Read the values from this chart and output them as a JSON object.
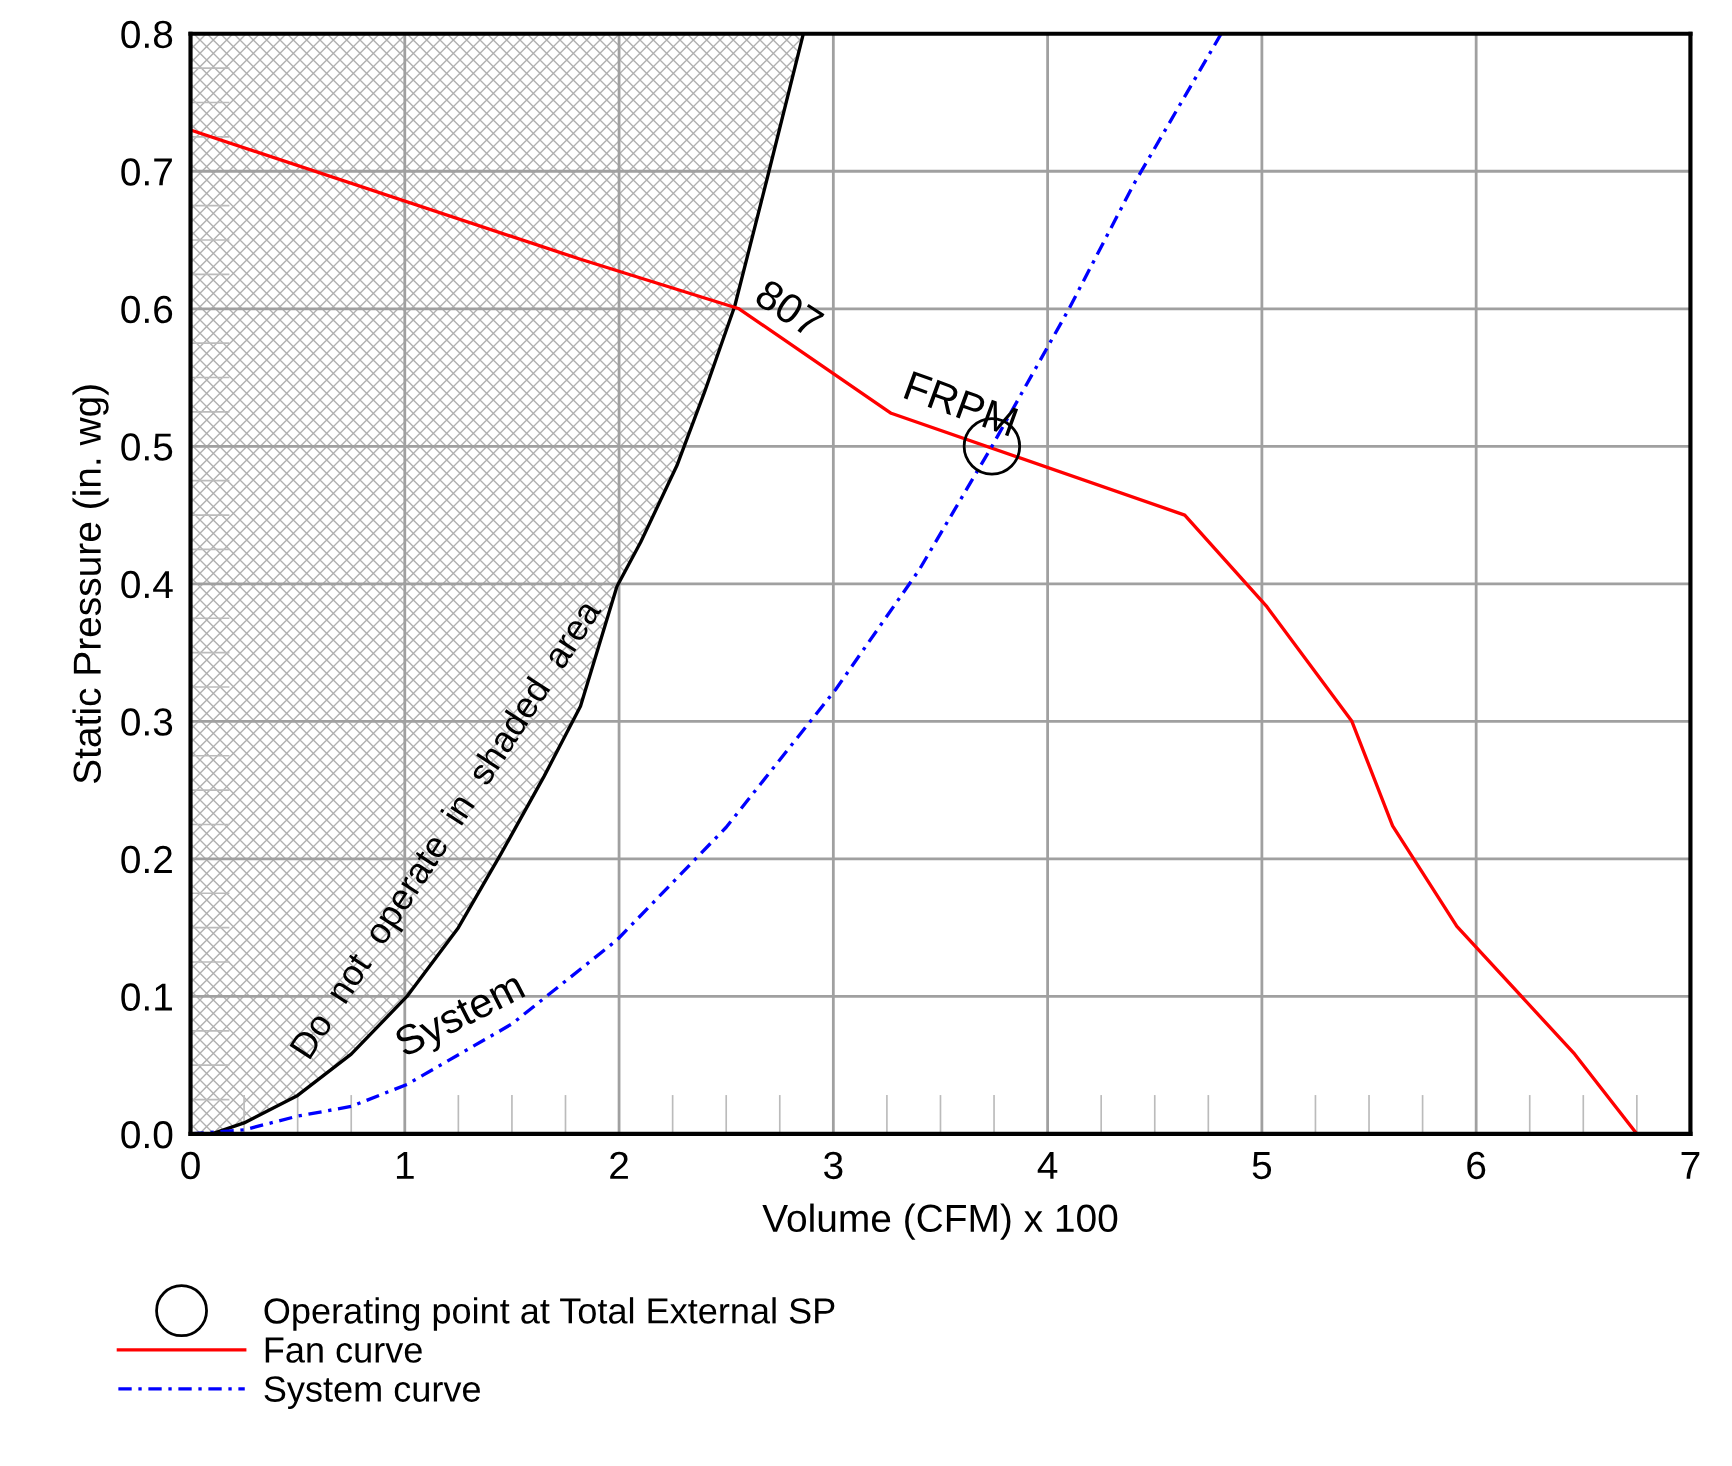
{
  "chart_data": {
    "type": "line",
    "xlabel": "Volume (CFM) x 100",
    "ylabel": "Static Pressure (in. wg)",
    "series": [
      {
        "type": "line",
        "color": "#000000",
        "x": [
          0.1,
          0.25,
          0.5,
          0.75,
          1.01,
          1.25,
          1.45,
          1.65,
          1.82,
          1.99,
          2.1,
          2.27,
          2.4,
          2.54,
          2.69,
          2.86
        ],
        "values": [
          0.0,
          0.008,
          0.028,
          0.058,
          0.1,
          0.15,
          0.204,
          0.26,
          0.311,
          0.398,
          0.43,
          0.486,
          0.54,
          0.602,
          0.694,
          0.8
        ]
      },
      {
        "type": "scatter",
        "name": "Operating point at Total External SP",
        "color": "#000000",
        "marker": "circle",
        "x": [
          3.74
        ],
        "values": [
          0.5
        ]
      },
      {
        "name": "Fan curve",
        "color": "#ff0000",
        "line_style": "solid",
        "x": [
          0,
          1.82,
          2.56,
          3.27,
          4.64,
          5.02,
          5.42,
          5.61,
          5.91,
          6.46,
          6.75
        ],
        "values": [
          0.73,
          0.636,
          0.6,
          0.524,
          0.45,
          0.384,
          0.3,
          0.224,
          0.151,
          0.058,
          0.0
        ]
      },
      {
        "name": "System curve",
        "color": "#0000ff",
        "line_style": "dashdot",
        "x": [
          0,
          0.25,
          0.5,
          0.75,
          1.01,
          1.5,
          1.99,
          2.5,
          3.01,
          3.4,
          3.74,
          4.1,
          4.4,
          4.81
        ],
        "values": [
          0.0,
          0.003,
          0.013,
          0.02,
          0.036,
          0.08,
          0.141,
          0.223,
          0.323,
          0.41,
          0.5,
          0.6,
          0.69,
          0.8
        ]
      }
    ],
    "annotations": [
      {
        "text": "807",
        "x": 2.6,
        "y": 0.6
      },
      {
        "text": "FRPM",
        "x": 3.3,
        "y": 0.53
      },
      "System",
      "Do  not  operate  in  shaded  area"
    ],
    "xlim": [
      0,
      7
    ],
    "ylim": [
      0,
      0.8
    ],
    "xticks": [
      0,
      1,
      2,
      3,
      4,
      5,
      6,
      7
    ],
    "yticks": [
      {
        "value": 0,
        "label": "0.0"
      },
      {
        "value": 0.1,
        "label": "0.1"
      },
      {
        "value": 0.2,
        "label": "0.2"
      },
      {
        "value": 0.3,
        "label": "0.3"
      },
      {
        "value": 0.4,
        "label": "0.4"
      },
      {
        "value": 0.5,
        "label": "0.5"
      },
      {
        "value": 0.6,
        "label": "0.6"
      },
      {
        "value": 0.7,
        "label": "0.7"
      },
      {
        "value": 0.8,
        "label": "0.8"
      }
    ],
    "grid": true,
    "legend": "bottom"
  }
}
